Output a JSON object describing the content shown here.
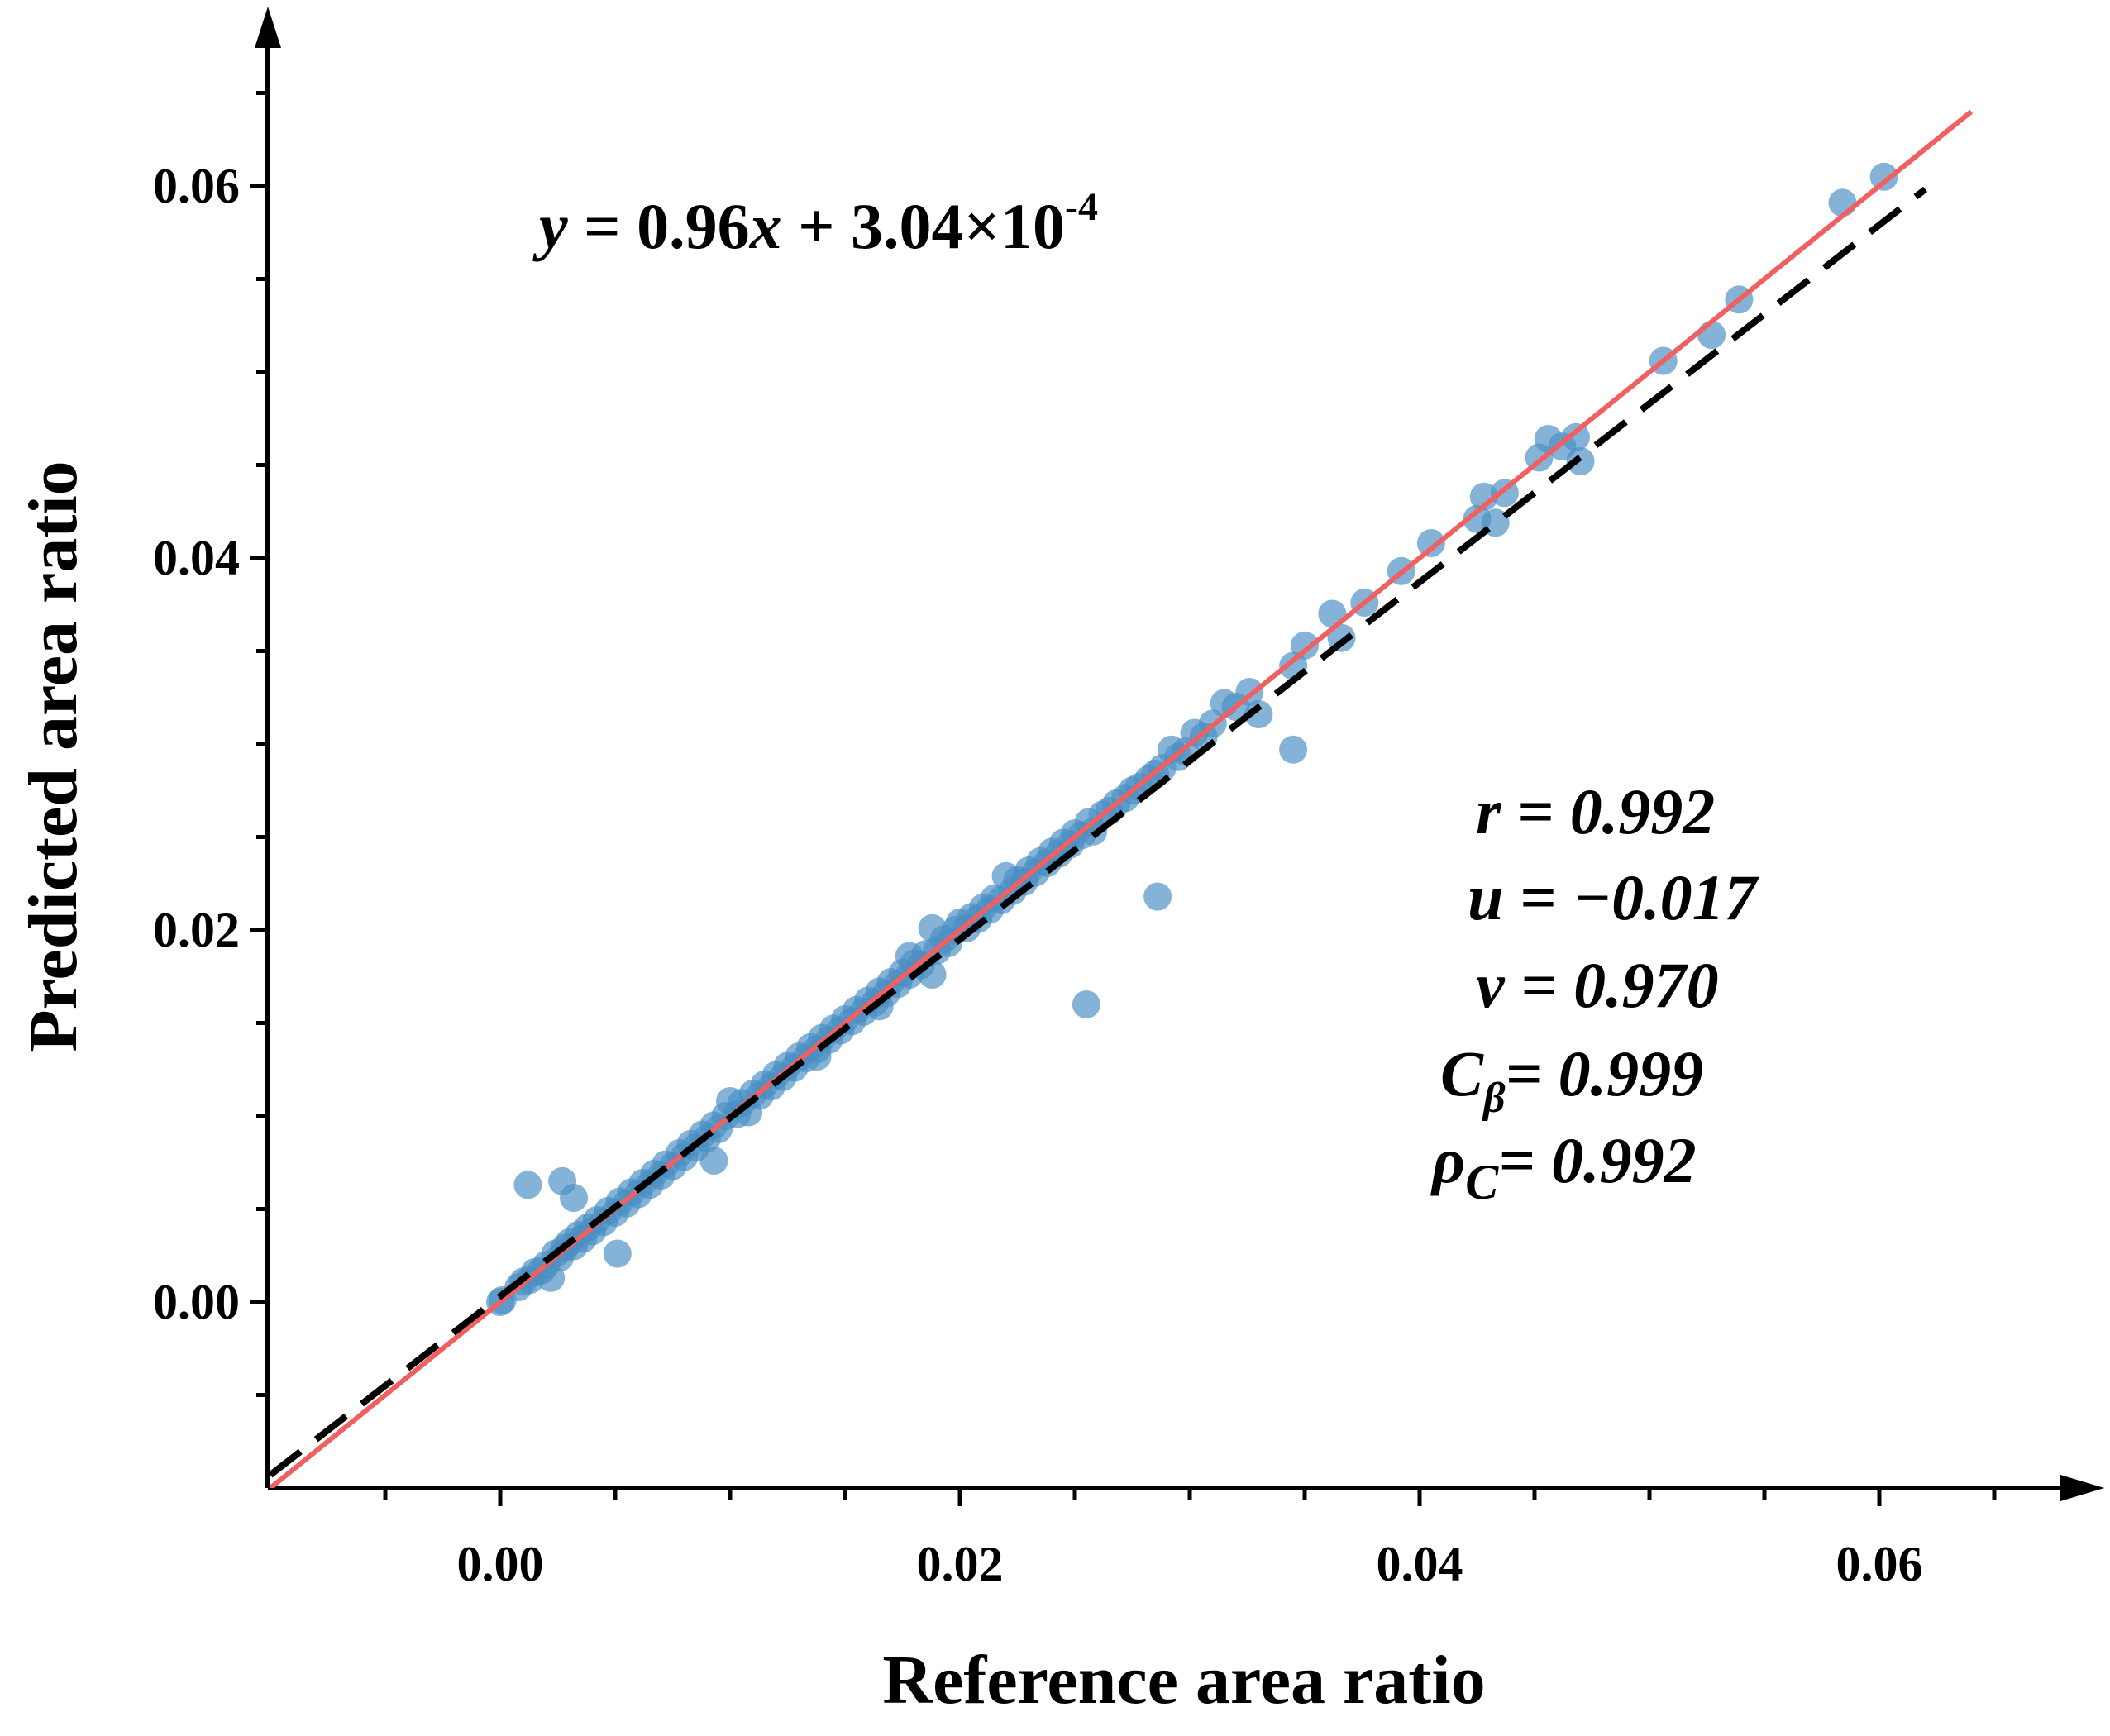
{
  "chart_data": {
    "type": "scatter",
    "title": "",
    "xlabel": "Reference area ratio",
    "ylabel": "Predicted area ratio",
    "xlim": [
      -0.01,
      0.068
    ],
    "ylim": [
      -0.01,
      0.068
    ],
    "xticks": [
      0.0,
      0.02,
      0.04,
      0.06
    ],
    "yticks": [
      0.0,
      0.02,
      0.04,
      0.06
    ],
    "xtick_labels": [
      "0.00",
      "0.02",
      "0.04",
      "0.06"
    ],
    "ytick_labels": [
      "0.00",
      "0.02",
      "0.04",
      "0.06"
    ],
    "grid": false,
    "colors": {
      "points": "#4a8fc4",
      "identity_line": "#f06060",
      "fit_line": "#000000"
    },
    "fit_equation": {
      "y": "y",
      "eq": " = 0.96",
      "x": "x",
      "rest": " + 3.04×10",
      "exp": "-4"
    },
    "fit_line": {
      "slope": 0.96,
      "intercept": 0.000304,
      "style": "dashed",
      "x_range": [
        -0.01,
        0.062
      ]
    },
    "identity_line": {
      "slope": 1,
      "intercept": 0,
      "style": "solid",
      "x_range": [
        -0.01,
        0.064
      ]
    },
    "stats": [
      {
        "symbol": "r",
        "subscript": "",
        "value": " = 0.992"
      },
      {
        "symbol": "u",
        "subscript": "",
        "value": " = −0.017"
      },
      {
        "symbol": "v",
        "subscript": "",
        "value": " = 0.970"
      },
      {
        "symbol": "C",
        "subscript": "β",
        "value": "= 0.999"
      },
      {
        "symbol": "ρ",
        "subscript": "C",
        "value": "= 0.992"
      }
    ],
    "points": [
      [
        0.0,
        0.0
      ],
      [
        0.0001,
        0.0001
      ],
      [
        0.0008,
        0.0008
      ],
      [
        0.001,
        0.0011
      ],
      [
        0.0013,
        0.0012
      ],
      [
        0.0015,
        0.0016
      ],
      [
        0.0018,
        0.0017
      ],
      [
        0.002,
        0.002
      ],
      [
        0.0022,
        0.0013
      ],
      [
        0.0024,
        0.0026
      ],
      [
        0.0026,
        0.0024
      ],
      [
        0.0028,
        0.0029
      ],
      [
        0.003,
        0.0032
      ],
      [
        0.0032,
        0.003
      ],
      [
        0.0034,
        0.0036
      ],
      [
        0.0036,
        0.0034
      ],
      [
        0.0038,
        0.004
      ],
      [
        0.004,
        0.0038
      ],
      [
        0.0042,
        0.0044
      ],
      [
        0.0045,
        0.0043
      ],
      [
        0.0047,
        0.0049
      ],
      [
        0.005,
        0.0048
      ],
      [
        0.0052,
        0.0054
      ],
      [
        0.0055,
        0.0053
      ],
      [
        0.0057,
        0.0059
      ],
      [
        0.006,
        0.0058
      ],
      [
        0.0062,
        0.0064
      ],
      [
        0.0065,
        0.0063
      ],
      [
        0.0067,
        0.0069
      ],
      [
        0.007,
        0.0068
      ],
      [
        0.0072,
        0.0074
      ],
      [
        0.0075,
        0.0073
      ],
      [
        0.0078,
        0.008
      ],
      [
        0.008,
        0.0078
      ],
      [
        0.0083,
        0.0085
      ],
      [
        0.0085,
        0.0083
      ],
      [
        0.0088,
        0.009
      ],
      [
        0.009,
        0.0088
      ],
      [
        0.0093,
        0.0095
      ],
      [
        0.0095,
        0.0093
      ],
      [
        0.0098,
        0.01
      ],
      [
        0.01,
        0.0108
      ],
      [
        0.0103,
        0.0101
      ],
      [
        0.0105,
        0.0107
      ],
      [
        0.0108,
        0.0102
      ],
      [
        0.011,
        0.0112
      ],
      [
        0.0113,
        0.0111
      ],
      [
        0.0115,
        0.0117
      ],
      [
        0.0118,
        0.0116
      ],
      [
        0.012,
        0.0122
      ],
      [
        0.0123,
        0.0121
      ],
      [
        0.0125,
        0.0127
      ],
      [
        0.0128,
        0.0126
      ],
      [
        0.013,
        0.0132
      ],
      [
        0.0133,
        0.0131
      ],
      [
        0.0135,
        0.0137
      ],
      [
        0.0138,
        0.0136
      ],
      [
        0.014,
        0.0142
      ],
      [
        0.0143,
        0.0141
      ],
      [
        0.0145,
        0.0147
      ],
      [
        0.0148,
        0.0146
      ],
      [
        0.015,
        0.0152
      ],
      [
        0.0153,
        0.0151
      ],
      [
        0.0155,
        0.0157
      ],
      [
        0.0158,
        0.0156
      ],
      [
        0.016,
        0.0162
      ],
      [
        0.0163,
        0.0161
      ],
      [
        0.0165,
        0.0167
      ],
      [
        0.0168,
        0.0166
      ],
      [
        0.017,
        0.0172
      ],
      [
        0.0173,
        0.0171
      ],
      [
        0.0175,
        0.0177
      ],
      [
        0.0178,
        0.0176
      ],
      [
        0.018,
        0.0182
      ],
      [
        0.0183,
        0.0181
      ],
      [
        0.0185,
        0.0187
      ],
      [
        0.0188,
        0.0201
      ],
      [
        0.019,
        0.0189
      ],
      [
        0.0193,
        0.0195
      ],
      [
        0.0195,
        0.0193
      ],
      [
        0.0198,
        0.02
      ],
      [
        0.02,
        0.0204
      ],
      [
        0.0203,
        0.0201
      ],
      [
        0.0205,
        0.0207
      ],
      [
        0.0208,
        0.0206
      ],
      [
        0.021,
        0.0212
      ],
      [
        0.0213,
        0.0211
      ],
      [
        0.0215,
        0.0217
      ],
      [
        0.0218,
        0.0216
      ],
      [
        0.022,
        0.0229
      ],
      [
        0.0223,
        0.0221
      ],
      [
        0.0225,
        0.0227
      ],
      [
        0.0228,
        0.0226
      ],
      [
        0.023,
        0.0232
      ],
      [
        0.0233,
        0.0231
      ],
      [
        0.0235,
        0.0237
      ],
      [
        0.0238,
        0.0236
      ],
      [
        0.024,
        0.0242
      ],
      [
        0.0243,
        0.0241
      ],
      [
        0.0245,
        0.0247
      ],
      [
        0.0248,
        0.0246
      ],
      [
        0.025,
        0.0252
      ],
      [
        0.0253,
        0.0251
      ],
      [
        0.0256,
        0.0258
      ],
      [
        0.0258,
        0.0253
      ],
      [
        0.0262,
        0.0262
      ],
      [
        0.0265,
        0.0264
      ],
      [
        0.0268,
        0.0268
      ],
      [
        0.0272,
        0.0271
      ],
      [
        0.0275,
        0.0275
      ],
      [
        0.0278,
        0.0277
      ],
      [
        0.0282,
        0.0281
      ],
      [
        0.0285,
        0.0284
      ],
      [
        0.0288,
        0.0287
      ],
      [
        0.0292,
        0.0297
      ],
      [
        0.0295,
        0.0293
      ],
      [
        0.0298,
        0.0296
      ],
      [
        0.0302,
        0.0306
      ],
      [
        0.0306,
        0.0304
      ],
      [
        0.031,
        0.0311
      ],
      [
        0.0315,
        0.0322
      ],
      [
        0.032,
        0.032
      ],
      [
        0.0326,
        0.0328
      ],
      [
        0.033,
        0.0316
      ],
      [
        0.0255,
        0.016
      ],
      [
        0.0286,
        0.0218
      ],
      [
        0.0345,
        0.0297
      ],
      [
        0.0345,
        0.0342
      ],
      [
        0.035,
        0.0353
      ],
      [
        0.0362,
        0.037
      ],
      [
        0.0366,
        0.0357
      ],
      [
        0.0376,
        0.0376
      ],
      [
        0.0392,
        0.0393
      ],
      [
        0.0405,
        0.0408
      ],
      [
        0.0425,
        0.0421
      ],
      [
        0.0428,
        0.0433
      ],
      [
        0.0433,
        0.0419
      ],
      [
        0.0437,
        0.0435
      ],
      [
        0.0452,
        0.0454
      ],
      [
        0.0456,
        0.0464
      ],
      [
        0.0462,
        0.046
      ],
      [
        0.0468,
        0.0465
      ],
      [
        0.047,
        0.0452
      ],
      [
        0.0506,
        0.0506
      ],
      [
        0.0527,
        0.052
      ],
      [
        0.0539,
        0.0539
      ],
      [
        0.0584,
        0.0591
      ],
      [
        0.0602,
        0.0605
      ],
      [
        0.0012,
        0.0063
      ],
      [
        0.0027,
        0.0065
      ],
      [
        0.0032,
        0.0056
      ],
      [
        0.0051,
        0.0026
      ],
      [
        0.0093,
        0.0076
      ],
      [
        0.0165,
        0.0159
      ],
      [
        0.0178,
        0.0186
      ],
      [
        0.0188,
        0.0176
      ],
      [
        0.0138,
        0.0132
      ]
    ]
  }
}
